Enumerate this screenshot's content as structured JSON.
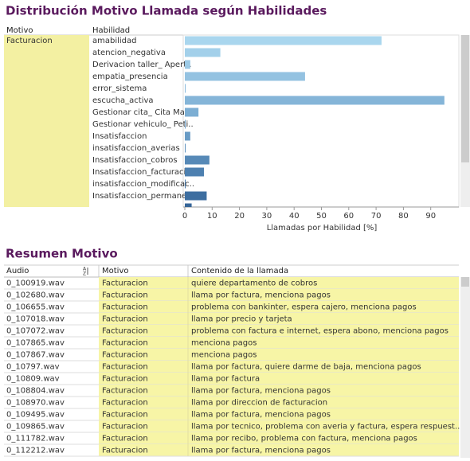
{
  "chart_data": {
    "type": "bar",
    "orientation": "horizontal",
    "title": "Distribución Motivo Llamada según Habilidades",
    "row_header": "Motivo",
    "column_header": "Habilidad",
    "group": "Facturacion",
    "categories": [
      "amabilidad",
      "atencion_negativa",
      "Derivacion taller_ Apert..",
      "empatia_presencia",
      "error_sistema",
      "escucha_activa",
      "Gestionar cita_ Cita Man..",
      "Gestionar vehiculo_ Peti..",
      "Insatisfaccion",
      "insatisfaccion_averias",
      "Insatisfaccion_cobros",
      "Insatisfaccion_facturaci..",
      "insatisfaccion_modificac..",
      "Insatisfaccion_permane..",
      null
    ],
    "values": [
      72,
      13,
      2,
      44,
      0.3,
      95,
      5,
      0.3,
      2,
      0.3,
      9,
      7,
      0.3,
      8,
      2.5
    ],
    "colors": [
      "#a9d6ee",
      "#a3d0ea",
      "#9ccae6",
      "#94c2e1",
      "#8dbcdd",
      "#85b5d8",
      "#7caed3",
      "#72a4cc",
      "#689bc5",
      "#5f92be",
      "#5689b7",
      "#4d80b0",
      "#4577a8",
      "#3d6ea0",
      "#356598"
    ],
    "xlim": [
      0,
      100
    ],
    "xticks": [
      0,
      10,
      20,
      30,
      40,
      50,
      60,
      70,
      80,
      90
    ],
    "x_label": "Llamadas por Habilidad [%]"
  },
  "table": {
    "title": "Resumen Motivo",
    "columns": [
      "Audio",
      "Motivo",
      "Contenido de la llamada"
    ],
    "rows": [
      [
        "0_100919.wav",
        "Facturacion",
        "quiere departamento de cobros"
      ],
      [
        "0_102680.wav",
        "Facturacion",
        "llama por factura, menciona pagos"
      ],
      [
        "0_106655.wav",
        "Facturacion",
        "problema con bankinter, espera cajero, menciona pagos"
      ],
      [
        "0_107018.wav",
        "Facturacion",
        "llama por precio y tarjeta"
      ],
      [
        "0_107072.wav",
        "Facturacion",
        "problema con factura e internet, espera abono, menciona pagos"
      ],
      [
        "0_107865.wav",
        "Facturacion",
        "menciona pagos"
      ],
      [
        "0_107867.wav",
        "Facturacion",
        "menciona pagos"
      ],
      [
        "0_10797.wav",
        "Facturacion",
        "llama por factura, quiere darme de baja, menciona pagos"
      ],
      [
        "0_10809.wav",
        "Facturacion",
        "llama por factura"
      ],
      [
        "0_108804.wav",
        "Facturacion",
        "llama por factura, menciona pagos"
      ],
      [
        "0_108970.wav",
        "Facturacion",
        "llama por direccion de facturacion"
      ],
      [
        "0_109495.wav",
        "Facturacion",
        "llama por factura, menciona pagos"
      ],
      [
        "0_109865.wav",
        "Facturacion",
        "llama por tecnico, problema con averia y factura, espera respuest.."
      ],
      [
        "0_111782.wav",
        "Facturacion",
        "llama por recibo, problema con factura, menciona pagos"
      ],
      [
        "0_112212.wav",
        "Facturacion",
        "llama por factura, menciona pagos"
      ]
    ]
  }
}
